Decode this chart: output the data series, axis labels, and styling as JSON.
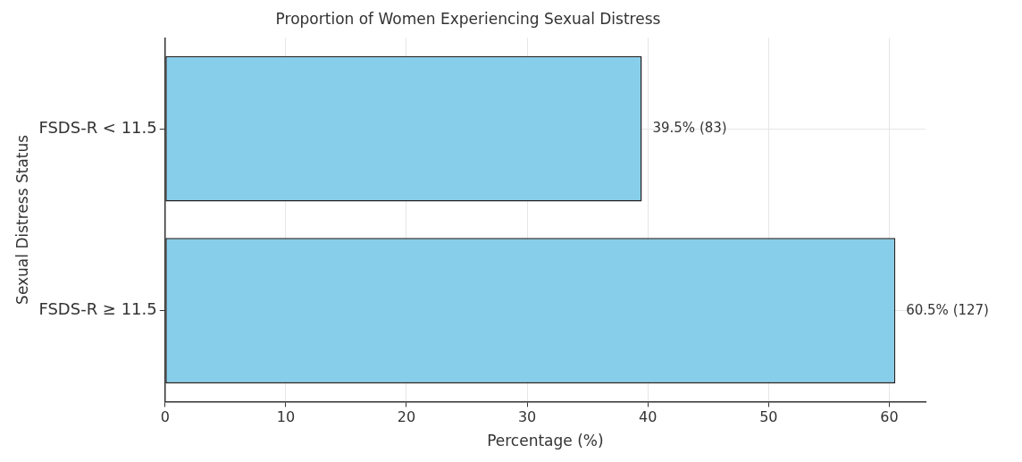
{
  "chart_data": {
    "type": "bar",
    "orientation": "horizontal",
    "title": "Proportion of Women Experiencing Sexual Distress",
    "xlabel": "Percentage (%)",
    "ylabel": "Sexual Distress Status",
    "categories": [
      "FSDS-R < 11.5",
      "FSDS-R ≥ 11.5"
    ],
    "values": [
      39.5,
      60.5
    ],
    "value_labels": [
      "39.5% (83)",
      "60.5% (127)"
    ],
    "color": "#87ceeb",
    "xlim": [
      0,
      63
    ],
    "xticks": [
      0,
      10,
      20,
      30,
      40,
      50,
      60
    ],
    "grid": true
  }
}
